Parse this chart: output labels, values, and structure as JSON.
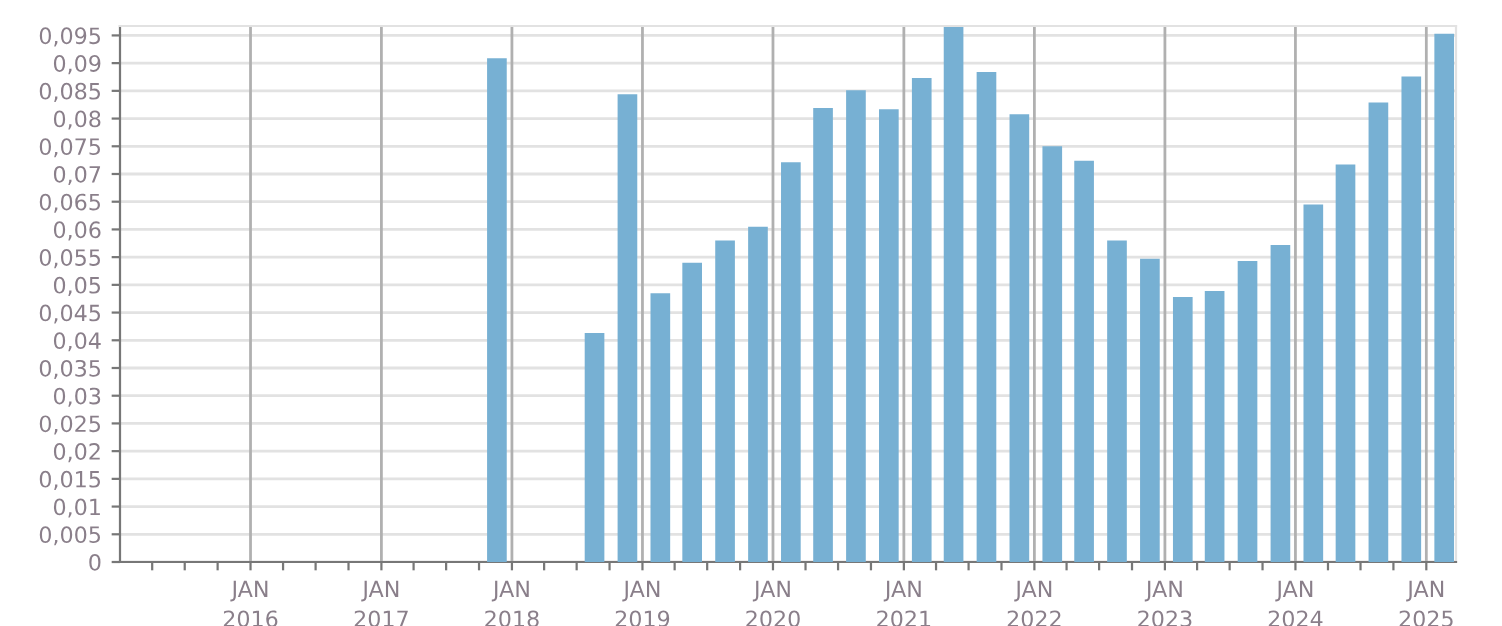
{
  "chart_data": {
    "type": "bar",
    "color": "#77b0d3",
    "x": [
      "2017-11-20",
      "2018-02-20",
      "2018-05-20",
      "2018-08-20",
      "2018-11-20",
      "2019-02-20",
      "2019-05-20",
      "2019-08-20",
      "2019-11-20",
      "2020-02-20",
      "2020-05-20",
      "2020-08-20",
      "2020-11-20",
      "2021-02-20",
      "2021-05-20",
      "2021-08-20",
      "2021-11-20",
      "2022-02-20",
      "2022-05-20",
      "2022-08-20",
      "2022-11-20",
      "2023-02-20",
      "2023-05-20",
      "2023-08-20",
      "2023-11-20",
      "2024-02-20",
      "2024-05-20",
      "2024-08-20",
      "2024-11-20",
      "2025-02-20"
    ],
    "values": [
      0.0909,
      null,
      null,
      0.0413,
      0.0844,
      0.0485,
      0.054,
      0.058,
      0.0605,
      0.0721,
      0.0819,
      0.0851,
      0.0817,
      0.0873,
      0.0965,
      0.0884,
      0.0808,
      0.075,
      0.0724,
      0.058,
      0.0547,
      0.0478,
      0.0489,
      0.0543,
      0.0572,
      0.0645,
      0.0717,
      0.0829,
      0.0876,
      0.0953
    ],
    "xlim": [
      "2015-01-01",
      "2025-03-25"
    ],
    "xticks": [
      {
        "value": "2015-04-01",
        "label": null
      },
      {
        "value": "2015-07-01",
        "label": null
      },
      {
        "value": "2015-10-01",
        "label": null
      },
      {
        "value": "2016-01-01",
        "label": "JAN\n2016"
      },
      {
        "value": "2016-04-01",
        "label": null
      },
      {
        "value": "2016-07-01",
        "label": null
      },
      {
        "value": "2016-10-01",
        "label": null
      },
      {
        "value": "2017-01-01",
        "label": "JAN\n2017"
      },
      {
        "value": "2017-04-01",
        "label": null
      },
      {
        "value": "2017-07-01",
        "label": null
      },
      {
        "value": "2017-10-01",
        "label": null
      },
      {
        "value": "2018-01-01",
        "label": "JAN\n2018"
      },
      {
        "value": "2018-04-01",
        "label": null
      },
      {
        "value": "2018-07-01",
        "label": null
      },
      {
        "value": "2018-10-01",
        "label": null
      },
      {
        "value": "2019-01-01",
        "label": "JAN\n2019"
      },
      {
        "value": "2019-04-01",
        "label": null
      },
      {
        "value": "2019-07-01",
        "label": null
      },
      {
        "value": "2019-10-01",
        "label": null
      },
      {
        "value": "2020-01-01",
        "label": "JAN\n2020"
      },
      {
        "value": "2020-04-01",
        "label": null
      },
      {
        "value": "2020-07-01",
        "label": null
      },
      {
        "value": "2020-10-01",
        "label": null
      },
      {
        "value": "2021-01-01",
        "label": "JAN\n2021"
      },
      {
        "value": "2021-04-01",
        "label": null
      },
      {
        "value": "2021-07-01",
        "label": null
      },
      {
        "value": "2021-10-01",
        "label": null
      },
      {
        "value": "2022-01-01",
        "label": "JAN\n2022"
      },
      {
        "value": "2022-04-01",
        "label": null
      },
      {
        "value": "2022-07-01",
        "label": null
      },
      {
        "value": "2022-10-01",
        "label": null
      },
      {
        "value": "2023-01-01",
        "label": "JAN\n2023"
      },
      {
        "value": "2023-04-01",
        "label": null
      },
      {
        "value": "2023-07-01",
        "label": null
      },
      {
        "value": "2023-10-01",
        "label": null
      },
      {
        "value": "2024-01-01",
        "label": "JAN\n2024"
      },
      {
        "value": "2024-04-01",
        "label": null
      },
      {
        "value": "2024-07-01",
        "label": null
      },
      {
        "value": "2024-10-01",
        "label": null
      },
      {
        "value": "2025-01-01",
        "label": "JAN\n2025"
      }
    ],
    "ylim": [
      0,
      0.0967
    ],
    "yticks": [
      0,
      {
        "value": 0.005,
        "label": "0,005"
      },
      {
        "value": 0.01,
        "label": "0,01"
      },
      {
        "value": 0.015,
        "label": "0,015"
      },
      {
        "value": 0.02,
        "label": "0,02"
      },
      {
        "value": 0.025,
        "label": "0,025"
      },
      {
        "value": 0.03,
        "label": "0,03"
      },
      {
        "value": 0.035,
        "label": "0,035"
      },
      {
        "value": 0.04,
        "label": "0,04"
      },
      {
        "value": 0.045,
        "label": "0,045"
      },
      {
        "value": 0.05,
        "label": "0,05"
      },
      {
        "value": 0.055,
        "label": "0,055"
      },
      {
        "value": 0.06,
        "label": "0,06"
      },
      {
        "value": 0.065,
        "label": "0,065"
      },
      {
        "value": 0.07,
        "label": "0,07"
      },
      {
        "value": 0.075,
        "label": "0,075"
      },
      {
        "value": 0.08,
        "label": "0,08"
      },
      {
        "value": 0.085,
        "label": "0,085"
      },
      {
        "value": 0.09,
        "label": "0,09"
      },
      {
        "value": 0.095,
        "label": "0,095"
      }
    ],
    "grid": true
  }
}
